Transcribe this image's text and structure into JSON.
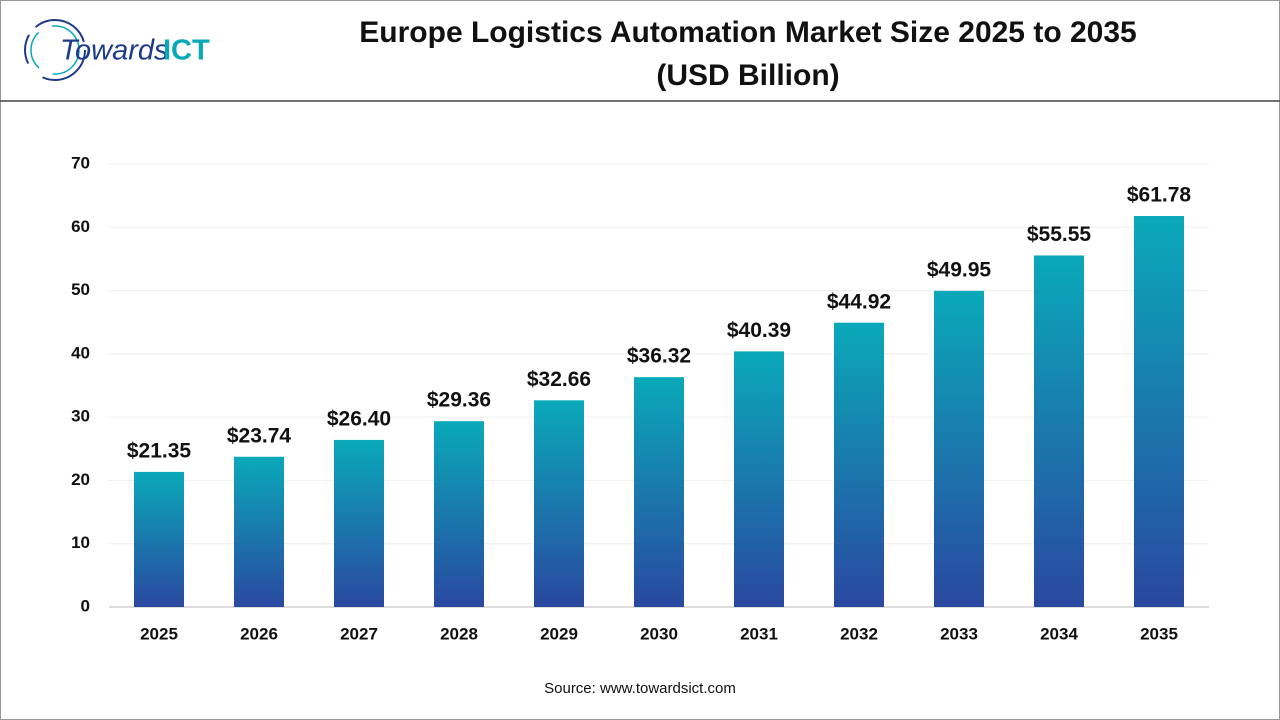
{
  "brand": {
    "name": "Towards",
    "accent": "ICT"
  },
  "chart_data": {
    "type": "bar",
    "title": "Europe Logistics Automation Market Size 2025 to 2035",
    "subtitle": "(USD Billion)",
    "categories": [
      "2025",
      "2026",
      "2027",
      "2028",
      "2029",
      "2030",
      "2031",
      "2032",
      "2033",
      "2034",
      "2035"
    ],
    "values": [
      21.35,
      23.74,
      26.4,
      29.36,
      32.66,
      36.32,
      40.39,
      44.92,
      49.95,
      55.55,
      61.78
    ],
    "value_labels": [
      "$21.35",
      "$23.74",
      "$26.40",
      "$29.36",
      "$32.66",
      "$36.32",
      "$40.39",
      "$44.92",
      "$49.95",
      "$55.55",
      "$61.78"
    ],
    "color": [
      "#0aa9b9",
      "#2a48a0"
    ],
    "ylim": [
      0,
      70
    ],
    "yticks": [
      0,
      10,
      20,
      30,
      40,
      50,
      60,
      70
    ],
    "grid": true,
    "source": "Source: www.towardsict.com"
  }
}
